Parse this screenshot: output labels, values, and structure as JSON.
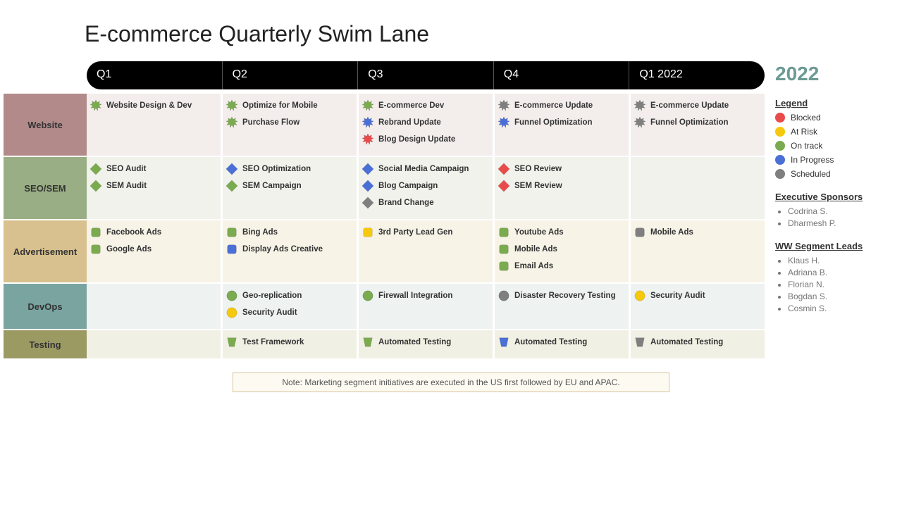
{
  "title": "E-commerce Quarterly Swim Lane",
  "year": "2022",
  "quarters": [
    "Q1",
    "Q2",
    "Q3",
    "Q4",
    "Q1 2022"
  ],
  "status_colors": {
    "blocked": "#e94b4b",
    "at_risk": "#f6c90e",
    "on_track": "#7aab4f",
    "in_progress": "#4a6fd6",
    "scheduled": "#7f7f7f"
  },
  "lanes": [
    {
      "label": "Website",
      "label_bg": "#b28a8a",
      "body_bg": "#f3edec",
      "shape": "star",
      "cells": [
        [
          {
            "label": "Website Design & Dev",
            "status": "on_track"
          }
        ],
        [
          {
            "label": "Optimize for Mobile",
            "status": "on_track"
          },
          {
            "label": "Purchase Flow",
            "status": "on_track"
          }
        ],
        [
          {
            "label": "E-commerce Dev",
            "status": "on_track"
          },
          {
            "label": "Rebrand Update",
            "status": "in_progress"
          },
          {
            "label": "Blog Design Update",
            "status": "blocked"
          }
        ],
        [
          {
            "label": "E-commerce Update",
            "status": "scheduled"
          },
          {
            "label": "Funnel Optimization",
            "status": "in_progress"
          }
        ],
        [
          {
            "label": "E-commerce Update",
            "status": "scheduled"
          },
          {
            "label": "Funnel Optimization",
            "status": "scheduled"
          }
        ]
      ]
    },
    {
      "label": "SEO/SEM",
      "label_bg": "#9aae85",
      "body_bg": "#f0f2eb",
      "shape": "diamond",
      "cells": [
        [
          {
            "label": "SEO Audit",
            "status": "on_track"
          },
          {
            "label": "SEM Audit",
            "status": "on_track"
          }
        ],
        [
          {
            "label": "SEO Optimization",
            "status": "in_progress"
          },
          {
            "label": "SEM Campaign",
            "status": "on_track"
          }
        ],
        [
          {
            "label": "Social Media Campaign",
            "status": "in_progress"
          },
          {
            "label": "Blog Campaign",
            "status": "in_progress"
          },
          {
            "label": "Brand Change",
            "status": "scheduled"
          }
        ],
        [
          {
            "label": "SEO Review",
            "status": "blocked"
          },
          {
            "label": "SEM Review",
            "status": "blocked"
          }
        ],
        []
      ]
    },
    {
      "label": "Advertisement",
      "label_bg": "#d8c18e",
      "body_bg": "#f7f3e7",
      "shape": "square",
      "cells": [
        [
          {
            "label": "Facebook Ads",
            "status": "on_track"
          },
          {
            "label": "Google Ads",
            "status": "on_track"
          }
        ],
        [
          {
            "label": "Bing Ads",
            "status": "on_track"
          },
          {
            "label": "Display Ads Creative",
            "status": "in_progress"
          }
        ],
        [
          {
            "label": "3rd Party Lead Gen",
            "status": "at_risk"
          }
        ],
        [
          {
            "label": "Youtube Ads",
            "status": "on_track"
          },
          {
            "label": "Mobile Ads",
            "status": "on_track"
          },
          {
            "label": "Email Ads",
            "status": "on_track"
          }
        ],
        [
          {
            "label": "Mobile Ads",
            "status": "scheduled"
          }
        ]
      ]
    },
    {
      "label": "DevOps",
      "label_bg": "#79a4a0",
      "body_bg": "#eef2f1",
      "shape": "circle",
      "cells": [
        [],
        [
          {
            "label": "Geo-replication",
            "status": "on_track"
          },
          {
            "label": "Security Audit",
            "status": "at_risk"
          }
        ],
        [
          {
            "label": "Firewall Integration",
            "status": "on_track"
          }
        ],
        [
          {
            "label": "Disaster Recovery Testing",
            "status": "scheduled"
          }
        ],
        [
          {
            "label": "Security Audit",
            "status": "at_risk"
          }
        ]
      ]
    },
    {
      "label": "Testing",
      "label_bg": "#9c9a63",
      "body_bg": "#f1f0e4",
      "shape": "trap",
      "cells": [
        [],
        [
          {
            "label": "Test Framework",
            "status": "on_track"
          }
        ],
        [
          {
            "label": "Automated Testing",
            "status": "on_track"
          }
        ],
        [
          {
            "label": "Automated Testing",
            "status": "in_progress"
          }
        ],
        [
          {
            "label": "Automated Testing",
            "status": "scheduled"
          }
        ]
      ]
    }
  ],
  "legend": {
    "title": "Legend",
    "items": [
      {
        "label": "Blocked",
        "status": "blocked"
      },
      {
        "label": "At Risk",
        "status": "at_risk"
      },
      {
        "label": "On track",
        "status": "on_track"
      },
      {
        "label": "In Progress",
        "status": "in_progress"
      },
      {
        "label": "Scheduled",
        "status": "scheduled"
      }
    ]
  },
  "sponsors": {
    "title": "Executive Sponsors",
    "names": [
      "Codrina S.",
      "Dharmesh P."
    ]
  },
  "leads": {
    "title": "WW Segment Leads",
    "names": [
      "Klaus H.",
      "Adriana B.",
      "Florian N.",
      "Bogdan S.",
      "Cosmin S."
    ]
  },
  "note": "Note:  Marketing segment initiatives are executed in the US first followed by EU and APAC."
}
